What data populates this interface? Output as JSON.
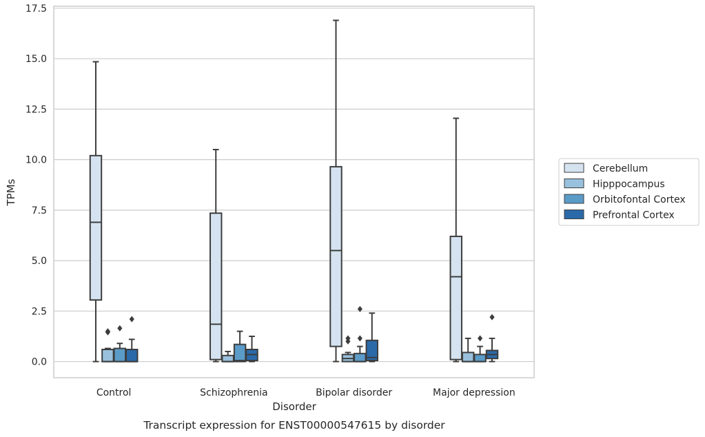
{
  "chart_data": {
    "type": "box",
    "title": "",
    "caption": "Transcript expression for ENST00000547615 by disorder",
    "xlabel": "Disorder",
    "ylabel": "TPMs",
    "ylim": [
      -0.8,
      17.6
    ],
    "yticks": [
      "0.0",
      "2.5",
      "5.0",
      "7.5",
      "10.0",
      "12.5",
      "15.0",
      "17.5"
    ],
    "grid": "horizontal",
    "legend_position": "right",
    "categories": [
      "Control",
      "Schizophrenia",
      "Bipolar disorder",
      "Major depression"
    ],
    "series": [
      {
        "name": "Cerebellum",
        "color": "#d5e3f1",
        "boxes": [
          {
            "whisker_low": 0,
            "q1": 3.05,
            "median": 6.9,
            "q3": 10.2,
            "whisker_high": 14.85,
            "outliers": []
          },
          {
            "whisker_low": 0,
            "q1": 0.1,
            "median": 1.85,
            "q3": 7.35,
            "whisker_high": 10.5,
            "outliers": []
          },
          {
            "whisker_low": 0,
            "q1": 0.75,
            "median": 5.5,
            "q3": 9.65,
            "whisker_high": 16.9,
            "outliers": []
          },
          {
            "whisker_low": 0,
            "q1": 0.1,
            "median": 4.2,
            "q3": 6.2,
            "whisker_high": 12.05,
            "outliers": []
          }
        ]
      },
      {
        "name": "Hipppocampus",
        "color": "#99c1de",
        "boxes": [
          {
            "whisker_low": 0,
            "q1": 0,
            "median": 0,
            "q3": 0.6,
            "whisker_high": 0.65,
            "outliers": [
              1.45,
              1.5
            ]
          },
          {
            "whisker_low": 0,
            "q1": 0,
            "median": 0,
            "q3": 0.3,
            "whisker_high": 0.5,
            "outliers": []
          },
          {
            "whisker_low": 0,
            "q1": 0,
            "median": 0.15,
            "q3": 0.35,
            "whisker_high": 0.45,
            "outliers": [
              1.0,
              1.15
            ]
          },
          {
            "whisker_low": 0,
            "q1": 0,
            "median": 0,
            "q3": 0.45,
            "whisker_high": 1.15,
            "outliers": []
          }
        ]
      },
      {
        "name": "Orbitofontal Cortex",
        "color": "#5b9bc8",
        "boxes": [
          {
            "whisker_low": 0,
            "q1": 0,
            "median": 0,
            "q3": 0.65,
            "whisker_high": 0.9,
            "outliers": [
              1.65
            ]
          },
          {
            "whisker_low": 0,
            "q1": 0,
            "median": 0.05,
            "q3": 0.85,
            "whisker_high": 1.5,
            "outliers": []
          },
          {
            "whisker_low": 0,
            "q1": 0,
            "median": 0,
            "q3": 0.4,
            "whisker_high": 0.75,
            "outliers": [
              1.15,
              2.6
            ]
          },
          {
            "whisker_low": 0,
            "q1": 0,
            "median": 0,
            "q3": 0.35,
            "whisker_high": 0.75,
            "outliers": [
              1.15
            ]
          }
        ]
      },
      {
        "name": "Prefrontal Cortex",
        "color": "#2a6aa9",
        "boxes": [
          {
            "whisker_low": 0,
            "q1": 0,
            "median": 0,
            "q3": 0.6,
            "whisker_high": 1.1,
            "outliers": [
              2.1
            ]
          },
          {
            "whisker_low": 0,
            "q1": 0.05,
            "median": 0.35,
            "q3": 0.6,
            "whisker_high": 1.25,
            "outliers": []
          },
          {
            "whisker_low": 0,
            "q1": 0.05,
            "median": 0.2,
            "q3": 1.05,
            "whisker_high": 2.4,
            "outliers": []
          },
          {
            "whisker_low": 0,
            "q1": 0.15,
            "median": 0.35,
            "q3": 0.55,
            "whisker_high": 1.15,
            "outliers": [
              2.2
            ]
          }
        ]
      }
    ]
  }
}
